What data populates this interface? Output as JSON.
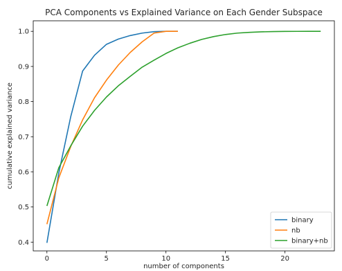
{
  "chart_data": {
    "type": "line",
    "title": "PCA Components vs Explained Variance on Each Gender Subspace",
    "xlabel": "number of components",
    "ylabel": "cumulative explained variance",
    "xlim": [
      -1.15,
      24.15
    ],
    "ylim": [
      0.375,
      1.03
    ],
    "xticks": [
      0,
      5,
      10,
      15,
      20
    ],
    "yticks": [
      0.4,
      0.5,
      0.6,
      0.7,
      0.8,
      0.9,
      1.0
    ],
    "ytick_labels": [
      "0.4",
      "0.5",
      "0.6",
      "0.7",
      "0.8",
      "0.9",
      "1.0"
    ],
    "grid": false,
    "legend_position": "bottom-right",
    "series": [
      {
        "name": "binary",
        "color": "#1f77b4",
        "x": [
          0,
          1,
          2,
          3,
          4,
          5,
          6,
          7,
          8,
          9,
          10,
          11
        ],
        "values": [
          0.398,
          0.597,
          0.757,
          0.887,
          0.932,
          0.963,
          0.978,
          0.988,
          0.995,
          0.999,
          1.0,
          1.0
        ]
      },
      {
        "name": "nb",
        "color": "#ff7f0e",
        "x": [
          0,
          1,
          2,
          3,
          4,
          5,
          6,
          7,
          8,
          9,
          10,
          11
        ],
        "values": [
          0.451,
          0.583,
          0.672,
          0.748,
          0.811,
          0.861,
          0.904,
          0.94,
          0.97,
          0.995,
          1.0,
          1.0
        ]
      },
      {
        "name": "binary+nb",
        "color": "#2ca02c",
        "x": [
          0,
          1,
          2,
          3,
          4,
          5,
          6,
          7,
          8,
          9,
          10,
          11,
          12,
          13,
          14,
          15,
          16,
          17,
          18,
          19,
          20,
          21,
          22,
          23
        ],
        "values": [
          0.503,
          0.612,
          0.674,
          0.73,
          0.775,
          0.813,
          0.845,
          0.872,
          0.898,
          0.918,
          0.937,
          0.953,
          0.966,
          0.977,
          0.985,
          0.991,
          0.995,
          0.997,
          0.9985,
          0.9993,
          0.9997,
          0.9999,
          1.0,
          1.0
        ]
      }
    ]
  }
}
